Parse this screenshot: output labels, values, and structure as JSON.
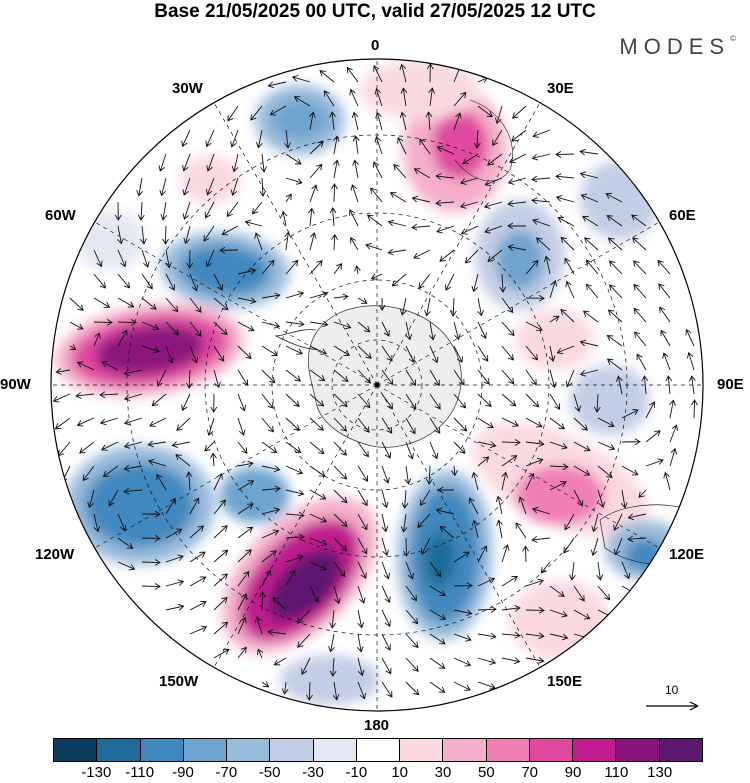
{
  "header": {
    "title": "Base 21/05/2025 00 UTC, valid 27/05/2025 12 UTC",
    "brand": "MODES"
  },
  "map": {
    "projection": "south-polar-stereographic",
    "longitude_labels": {
      "top": "0",
      "top_right": "30E",
      "right_upper": "60E",
      "right": "90E",
      "right_lower": "120E",
      "bottom_right": "150E",
      "bottom": "180",
      "bottom_left": "150W",
      "left_lower": "120W",
      "left": "90W",
      "left_upper": "60W",
      "top_left": "30W"
    },
    "vector_reference": "10",
    "colors": {
      "land_fill": "#ececec",
      "coastline": "#222222",
      "graticule": "#111111"
    }
  },
  "colorbar": {
    "colors": [
      "#0b3c5d",
      "#1f6a99",
      "#3f88bd",
      "#6ea4cf",
      "#99bbdc",
      "#c3cde6",
      "#e5e7f3",
      "#ffffff",
      "#fbd9e1",
      "#f5afca",
      "#ef7fb5",
      "#e0489f",
      "#bf1d8d",
      "#8a137e",
      "#5e176f"
    ],
    "ticks": [
      "-130",
      "-110",
      "-90",
      "-70",
      "-50",
      "-30",
      "-10",
      "10",
      "30",
      "50",
      "70",
      "90",
      "110",
      "130"
    ]
  }
}
